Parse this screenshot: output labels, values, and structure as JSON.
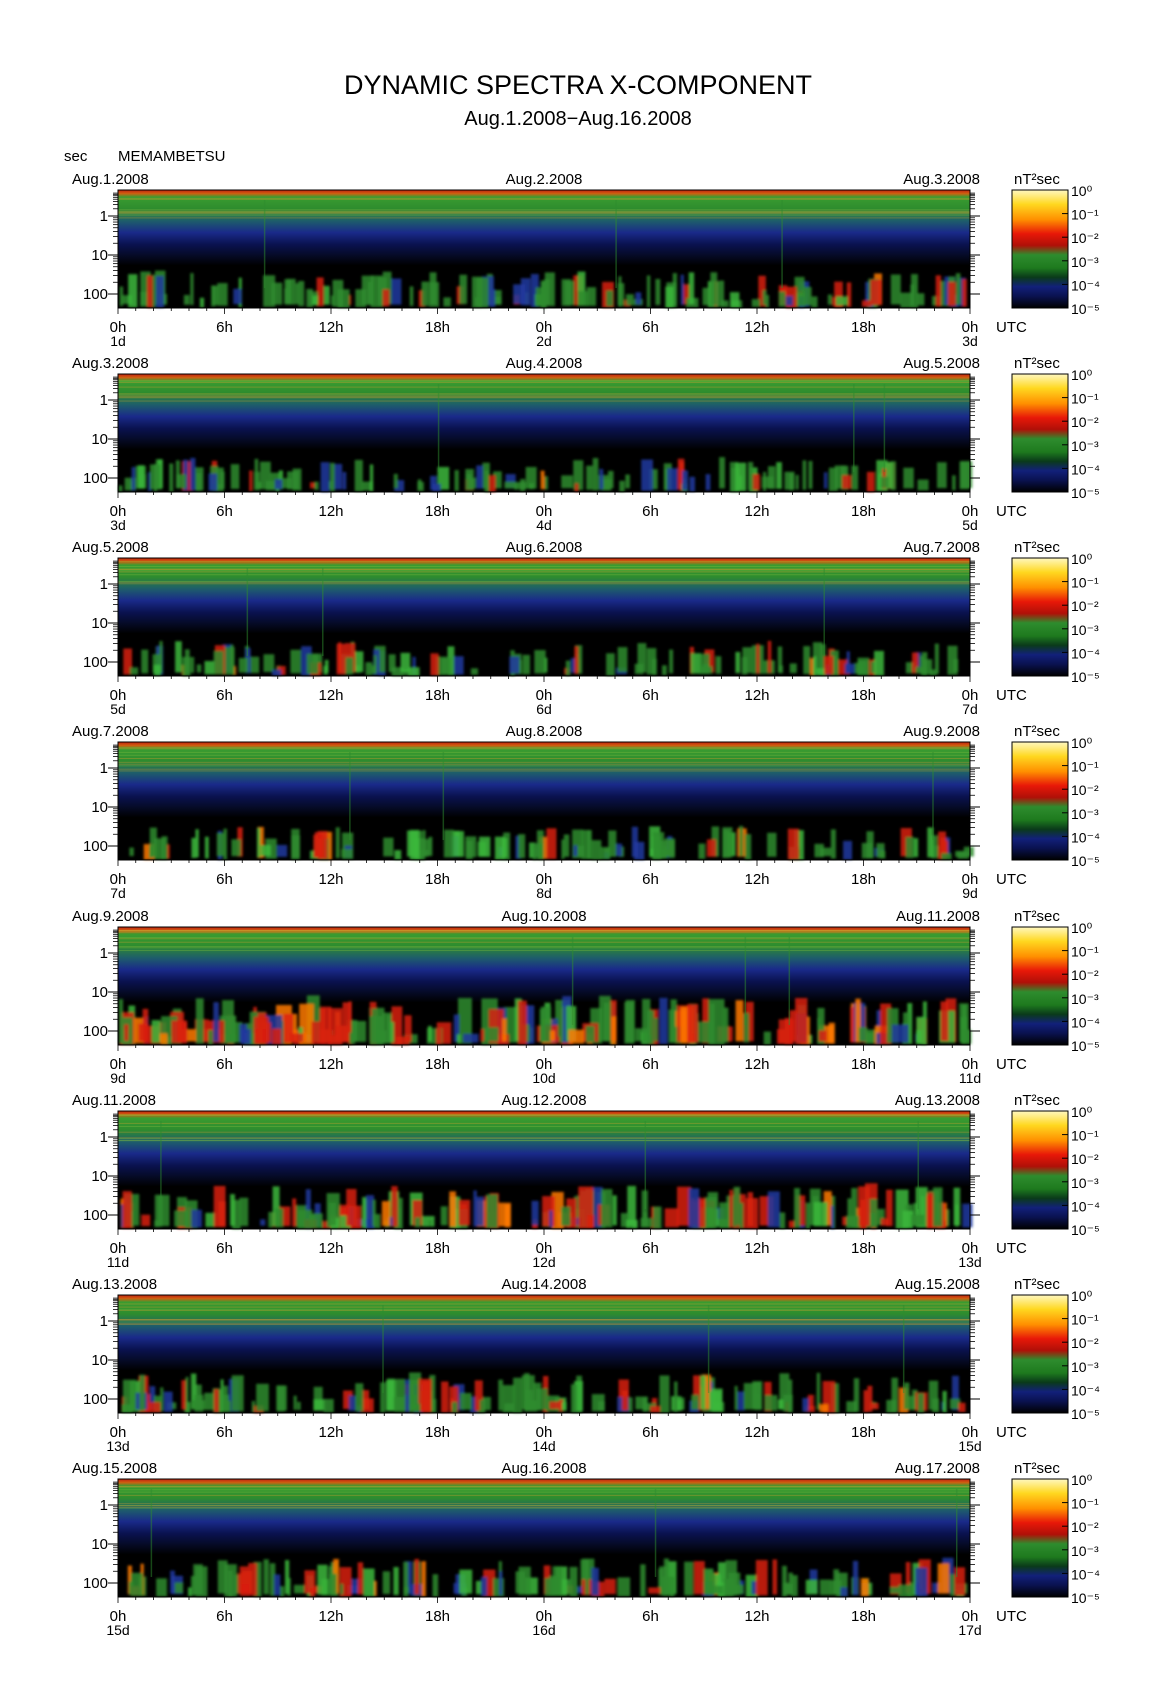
{
  "title": "DYNAMIC SPECTRA X-COMPONENT",
  "subtitle": "Aug.1.2008−Aug.16.2008",
  "unit_label": "sec",
  "station": "MEMAMBETSU",
  "colorbar": {
    "unit": "nT²sec",
    "ticks": [
      "10⁰",
      "10⁻¹",
      "10⁻²",
      "10⁻³",
      "10⁻⁴",
      "10⁻⁵"
    ]
  },
  "x_tick_labels": [
    "0h",
    "6h",
    "12h",
    "18h",
    "0h",
    "6h",
    "12h",
    "18h",
    "0h"
  ],
  "x_unit": "UTC",
  "y_tick_labels": [
    "1",
    "10",
    "100"
  ],
  "colors": {
    "black": "#000000",
    "navy": "#0a1250",
    "blue": "#2038a0",
    "green": "#2e8c2e",
    "bright_green": "#3cb83c",
    "red": "#d82010",
    "orange": "#ff7a00",
    "yellow": "#ffe030"
  },
  "chart_data": [
    {
      "type": "heatmap",
      "date_start": "Aug.1.2008",
      "date_mid": "Aug.2.2008",
      "date_end": "Aug.3.2008",
      "day_labels": [
        "1d",
        "2d",
        "3d"
      ],
      "activity": 0.35
    },
    {
      "type": "heatmap",
      "date_start": "Aug.3.2008",
      "date_mid": "Aug.4.2008",
      "date_end": "Aug.5.2008",
      "day_labels": [
        "3d",
        "4d",
        "5d"
      ],
      "activity": 0.3
    },
    {
      "type": "heatmap",
      "date_start": "Aug.5.2008",
      "date_mid": "Aug.6.2008",
      "date_end": "Aug.7.2008",
      "day_labels": [
        "5d",
        "6d",
        "7d"
      ],
      "activity": 0.28
    },
    {
      "type": "heatmap",
      "date_start": "Aug.7.2008",
      "date_mid": "Aug.8.2008",
      "date_end": "Aug.9.2008",
      "day_labels": [
        "7d",
        "8d",
        "9d"
      ],
      "activity": 0.25
    },
    {
      "type": "heatmap",
      "date_start": "Aug.9.2008",
      "date_mid": "Aug.10.2008",
      "date_end": "Aug.11.2008",
      "day_labels": [
        "9d",
        "10d",
        "11d"
      ],
      "activity": 0.75
    },
    {
      "type": "heatmap",
      "date_start": "Aug.11.2008",
      "date_mid": "Aug.12.2008",
      "date_end": "Aug.13.2008",
      "day_labels": [
        "11d",
        "12d",
        "13d"
      ],
      "activity": 0.6
    },
    {
      "type": "heatmap",
      "date_start": "Aug.13.2008",
      "date_mid": "Aug.14.2008",
      "date_end": "Aug.15.2008",
      "day_labels": [
        "13d",
        "14d",
        "15d"
      ],
      "activity": 0.45
    },
    {
      "type": "heatmap",
      "date_start": "Aug.15.2008",
      "date_mid": "Aug.16.2008",
      "date_end": "Aug.17.2008",
      "day_labels": [
        "15d",
        "16d",
        "17d"
      ],
      "activity": 0.4
    }
  ]
}
